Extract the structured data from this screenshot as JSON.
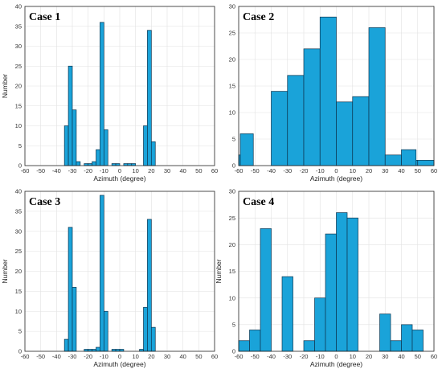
{
  "colors": {
    "bar_fill": "#1AA3D9",
    "bar_edge": "#0d3550",
    "grid": "#e2e2e2",
    "axis": "#262626"
  },
  "chart_data": [
    {
      "type": "bar",
      "title": "Case 1",
      "xlabel": "Azimuth (degree)",
      "ylabel": "Number",
      "xlim": [
        -60,
        60
      ],
      "ylim": [
        0,
        40
      ],
      "xticks": [
        -60,
        -50,
        -40,
        -30,
        -20,
        -10,
        0,
        10,
        20,
        30,
        40,
        50,
        60
      ],
      "yticks": [
        0,
        5,
        10,
        15,
        20,
        25,
        30,
        35,
        40
      ],
      "grid": true,
      "bin_width": 2.5,
      "bins": [
        {
          "x": -35,
          "value": 10
        },
        {
          "x": -32.5,
          "value": 25
        },
        {
          "x": -30,
          "value": 14
        },
        {
          "x": -27.5,
          "value": 1
        },
        {
          "x": -22.5,
          "value": 0.5
        },
        {
          "x": -20,
          "value": 0.5
        },
        {
          "x": -17.5,
          "value": 1
        },
        {
          "x": -15,
          "value": 4
        },
        {
          "x": -12.5,
          "value": 36
        },
        {
          "x": -10,
          "value": 9
        },
        {
          "x": -5,
          "value": 0.5
        },
        {
          "x": -2.5,
          "value": 0.5
        },
        {
          "x": 2.5,
          "value": 0.5
        },
        {
          "x": 5,
          "value": 0.5
        },
        {
          "x": 7.5,
          "value": 0.5
        },
        {
          "x": 15,
          "value": 10
        },
        {
          "x": 17.5,
          "value": 34
        },
        {
          "x": 20,
          "value": 6
        }
      ]
    },
    {
      "type": "bar",
      "title": "Case 2",
      "xlabel": "Azimuth (degree)",
      "ylabel": "",
      "xlim": [
        -60,
        60
      ],
      "ylim": [
        0,
        30
      ],
      "xticks": [
        -60,
        -50,
        -40,
        -30,
        -20,
        -10,
        0,
        10,
        20,
        30,
        40,
        50,
        60
      ],
      "yticks": [
        0,
        5,
        10,
        15,
        20,
        25,
        30
      ],
      "grid": true,
      "bin_width": 10,
      "bins": [
        {
          "x": -60,
          "value": 2,
          "width": 1
        },
        {
          "x": -59,
          "value": 6,
          "width": 8
        },
        {
          "x": -40,
          "value": 14
        },
        {
          "x": -30,
          "value": 17
        },
        {
          "x": -20,
          "value": 22
        },
        {
          "x": -10,
          "value": 28
        },
        {
          "x": 0,
          "value": 12
        },
        {
          "x": 10,
          "value": 13
        },
        {
          "x": 20,
          "value": 26
        },
        {
          "x": 30,
          "value": 2
        },
        {
          "x": 40,
          "value": 1
        },
        {
          "x": 50,
          "value": 3,
          "width": 9,
          "offset": -10
        },
        {
          "x": 50,
          "value": 1
        }
      ]
    },
    {
      "type": "bar",
      "title": "Case 3",
      "xlabel": "Azimuth (degree)",
      "ylabel": "Number",
      "xlim": [
        -60,
        60
      ],
      "ylim": [
        0,
        40
      ],
      "xticks": [
        -60,
        -50,
        -40,
        -30,
        -20,
        -10,
        0,
        10,
        20,
        30,
        40,
        50,
        60
      ],
      "yticks": [
        0,
        5,
        10,
        15,
        20,
        25,
        30,
        35,
        40
      ],
      "grid": true,
      "bin_width": 2.5,
      "bins": [
        {
          "x": -35,
          "value": 3
        },
        {
          "x": -32.5,
          "value": 31
        },
        {
          "x": -30,
          "value": 16
        },
        {
          "x": -22.5,
          "value": 0.5
        },
        {
          "x": -20,
          "value": 0.5
        },
        {
          "x": -17.5,
          "value": 0.5
        },
        {
          "x": -15,
          "value": 1
        },
        {
          "x": -12.5,
          "value": 39
        },
        {
          "x": -10,
          "value": 10
        },
        {
          "x": -5,
          "value": 0.5
        },
        {
          "x": -2.5,
          "value": 0.5
        },
        {
          "x": 0,
          "value": 0.5
        },
        {
          "x": 12.5,
          "value": 0.5
        },
        {
          "x": 15,
          "value": 11
        },
        {
          "x": 17.5,
          "value": 33
        },
        {
          "x": 20,
          "value": 6
        }
      ]
    },
    {
      "type": "bar",
      "title": "Case 4",
      "xlabel": "Azimuth (degree)",
      "ylabel": "Number",
      "xlim": [
        -60,
        60
      ],
      "ylim": [
        0,
        30
      ],
      "xticks": [
        -60,
        -50,
        -40,
        -30,
        -20,
        -10,
        0,
        10,
        20,
        30,
        40,
        50,
        60
      ],
      "yticks": [
        0,
        5,
        10,
        15,
        20,
        25,
        30
      ],
      "grid": true,
      "bin_width": 6.67,
      "bins": [
        {
          "x": -60,
          "value": 2
        },
        {
          "x": -53.33,
          "value": 4
        },
        {
          "x": -46.67,
          "value": 23
        },
        {
          "x": -40,
          "value": 0
        },
        {
          "x": -33.33,
          "value": 14
        },
        {
          "x": -20,
          "value": 2
        },
        {
          "x": -13.33,
          "value": 10
        },
        {
          "x": -6.67,
          "value": 22
        },
        {
          "x": 0,
          "value": 26
        },
        {
          "x": 6.67,
          "value": 25
        },
        {
          "x": 26.67,
          "value": 7
        },
        {
          "x": 33.33,
          "value": 2
        },
        {
          "x": 40,
          "value": 5
        },
        {
          "x": 46.67,
          "value": 4
        }
      ]
    }
  ]
}
